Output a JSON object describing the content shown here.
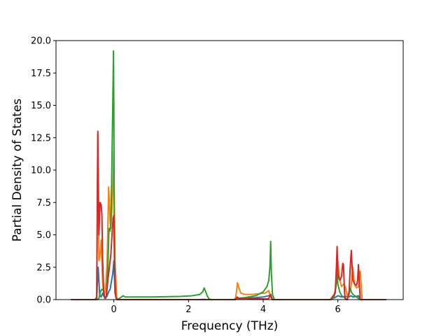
{
  "chart_data": {
    "type": "line",
    "title": "",
    "xlabel": "Frequency (THz)",
    "ylabel": "Partial Density of States",
    "xlim": [
      -1.55,
      7.75
    ],
    "ylim": [
      0,
      20.0
    ],
    "xticks": [
      0,
      2,
      4,
      6
    ],
    "xtick_labels": [
      "0",
      "2",
      "4",
      "6"
    ],
    "yticks": [
      0,
      2.5,
      5.0,
      7.5,
      10.0,
      12.5,
      15.0,
      17.5,
      20.0
    ],
    "ytick_labels": [
      "0.0",
      "2.5",
      "5.0",
      "7.5",
      "10.0",
      "12.5",
      "15.0",
      "17.5",
      "20.0"
    ],
    "grid": false,
    "legend": "none",
    "series": [
      {
        "color": "#1f77b4",
        "x": [
          -1.15,
          -0.5,
          -0.46,
          -0.42,
          -0.38,
          -0.34,
          -0.3,
          -0.26,
          -0.22,
          -0.18,
          -0.14,
          -0.1,
          -0.06,
          -0.03,
          0.0,
          0.03,
          0.08,
          2.3,
          2.4,
          2.5,
          3.2,
          3.3,
          3.35,
          3.5,
          3.8,
          4.0,
          4.15,
          4.2,
          4.25,
          5.8,
          5.95,
          6.0,
          6.1,
          6.2,
          6.3,
          6.35,
          6.4,
          6.5,
          6.55,
          6.6,
          7.3
        ],
        "y": [
          0,
          0,
          0.05,
          2.5,
          0.4,
          0.2,
          0.5,
          0.2,
          0.1,
          0.3,
          0.6,
          0.8,
          1.5,
          2.0,
          3.0,
          0.5,
          0,
          0,
          0.02,
          0,
          0,
          0.1,
          0.08,
          0.1,
          0.15,
          0.2,
          0.3,
          0.4,
          0,
          0,
          0.2,
          0.3,
          0.2,
          0.25,
          0.2,
          0.3,
          0.2,
          0.25,
          0.3,
          0,
          0
        ]
      },
      {
        "color": "#ff7f0e",
        "x": [
          -1.15,
          -0.5,
          -0.46,
          -0.43,
          -0.4,
          -0.37,
          -0.34,
          -0.3,
          -0.26,
          -0.22,
          -0.18,
          -0.14,
          -0.12,
          -0.1,
          -0.08,
          -0.05,
          -0.02,
          0.0,
          0.03,
          0.08,
          2.3,
          3.25,
          3.28,
          3.31,
          3.35,
          3.4,
          3.5,
          3.7,
          3.9,
          4.05,
          4.15,
          4.2,
          4.23,
          4.26,
          5.8,
          5.9,
          5.95,
          6.0,
          6.05,
          6.1,
          6.15,
          6.2,
          6.25,
          6.3,
          6.35,
          6.4,
          6.45,
          6.5,
          6.55,
          6.6,
          6.65,
          7.3
        ],
        "y": [
          0,
          0,
          0.2,
          12.8,
          3.0,
          3.5,
          4.6,
          1.2,
          0.3,
          0.8,
          3.0,
          8.7,
          7.5,
          6.0,
          5.5,
          7.0,
          9.0,
          11.5,
          3.0,
          0,
          0,
          0,
          0.5,
          1.3,
          0.9,
          0.5,
          0.4,
          0.4,
          0.45,
          0.5,
          0.7,
          0.2,
          0.05,
          0,
          0,
          0.4,
          1.0,
          3.0,
          1.5,
          1.0,
          1.2,
          1.0,
          0.3,
          0.6,
          0.9,
          2.5,
          1.1,
          0.9,
          1.0,
          2.2,
          0,
          0
        ]
      },
      {
        "color": "#2ca02c",
        "x": [
          -1.15,
          -0.5,
          -0.44,
          -0.4,
          -0.36,
          -0.32,
          -0.28,
          -0.24,
          -0.2,
          -0.16,
          -0.13,
          -0.1,
          -0.08,
          -0.06,
          -0.04,
          -0.02,
          -0.01,
          0.0,
          0.01,
          0.03,
          0.06,
          0.1,
          0.15,
          0.2,
          0.25,
          0.3,
          0.4,
          1.0,
          1.8,
          2.1,
          2.3,
          2.38,
          2.42,
          2.46,
          2.5,
          2.55,
          2.6,
          3.25,
          3.3,
          3.5,
          3.8,
          4.0,
          4.1,
          4.15,
          4.18,
          4.2,
          4.22,
          4.25,
          4.3,
          5.8,
          5.9,
          5.95,
          5.98,
          6.0,
          6.05,
          6.1,
          6.2,
          6.25,
          6.3,
          6.33,
          6.36,
          6.4,
          6.45,
          6.5,
          6.55,
          6.6,
          7.3
        ],
        "y": [
          0,
          0,
          0,
          0.1,
          0.6,
          0.8,
          0.7,
          0.1,
          0.3,
          2.5,
          5.5,
          5.3,
          6.0,
          9.0,
          13.0,
          17.0,
          19.2,
          15.0,
          6.0,
          1.0,
          0.1,
          0,
          0.1,
          0.2,
          0.3,
          0.2,
          0.2,
          0.2,
          0.25,
          0.3,
          0.4,
          0.6,
          0.9,
          0.6,
          0.3,
          0.05,
          0,
          0,
          0.1,
          0.15,
          0.3,
          0.6,
          1.0,
          1.5,
          2.5,
          4.5,
          2.0,
          0.4,
          0,
          0,
          0.2,
          1.0,
          2.0,
          1.2,
          0.6,
          0.3,
          0.1,
          0,
          0.4,
          0.9,
          0.6,
          0.4,
          0.3,
          0.2,
          0.1,
          0,
          0
        ]
      },
      {
        "color": "#d62728",
        "x": [
          -1.15,
          -0.5,
          -0.46,
          -0.43,
          -0.4,
          -0.37,
          -0.34,
          -0.32,
          -0.3,
          -0.27,
          -0.24,
          -0.2,
          -0.16,
          -0.12,
          -0.08,
          -0.05,
          -0.02,
          0.0,
          0.02,
          0.05,
          0.1,
          3.25,
          3.3,
          3.35,
          4.1,
          4.15,
          4.18,
          4.2,
          4.22,
          4.25,
          5.8,
          5.93,
          5.96,
          5.98,
          6.0,
          6.03,
          6.06,
          6.1,
          6.13,
          6.15,
          6.18,
          6.2,
          6.25,
          6.3,
          6.33,
          6.36,
          6.4,
          6.45,
          6.5,
          6.53,
          6.55,
          6.58,
          6.6,
          7.3
        ],
        "y": [
          0,
          0,
          0.2,
          13.0,
          5.0,
          7.5,
          7.3,
          6.5,
          3.0,
          0.4,
          0.1,
          0.3,
          1.5,
          2.5,
          3.5,
          5.0,
          6.3,
          6.5,
          2.0,
          0.2,
          0,
          0,
          0.2,
          0.1,
          0.05,
          0.1,
          0.3,
          0.4,
          0.2,
          0,
          0,
          0.5,
          2.5,
          4.1,
          2.0,
          1.6,
          1.5,
          1.8,
          2.8,
          2.7,
          0.5,
          0.05,
          0,
          0.5,
          2.5,
          3.8,
          1.5,
          1.2,
          1.1,
          1.5,
          2.7,
          1.0,
          0,
          0
        ]
      }
    ]
  }
}
